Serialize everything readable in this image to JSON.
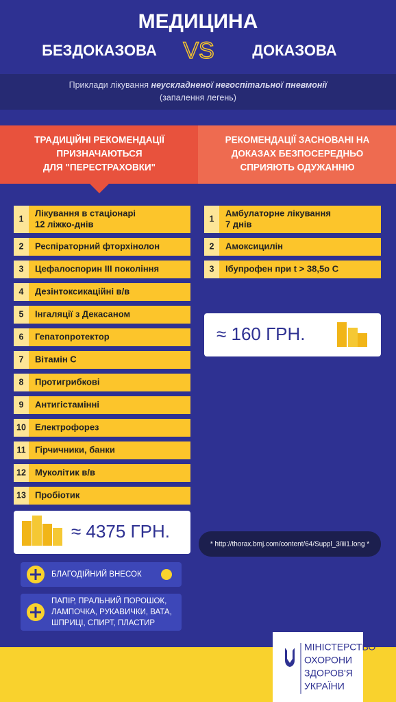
{
  "header": {
    "title": "МЕДИЦИНА",
    "left": "БЕЗДОКАЗОВА",
    "vs": "VS",
    "right": "ДОКАЗОВА"
  },
  "subtitle": {
    "prefix": "Приклади лікування ",
    "emphasis": "неускладненої негоспітальної пневмонії",
    "line2": "(запалення легень)"
  },
  "left": {
    "heading": [
      "ТРАДИЦІЙНІ РЕКОМЕНДАЦІЇ",
      "ПРИЗНАЧАЮТЬСЯ",
      "ДЛЯ \"ПЕРЕСТРАХОВКИ\""
    ],
    "items": [
      {
        "number": "1",
        "lines": [
          "Лікування в стаціонарі",
          "12 ліжко-днів"
        ]
      },
      {
        "number": "2",
        "lines": [
          "Респіраторний фторхінолон"
        ]
      },
      {
        "number": "3",
        "lines": [
          "Цефалоспорин ІІІ покоління"
        ]
      },
      {
        "number": "4",
        "lines": [
          "Дезінтоксикаційні в/в"
        ]
      },
      {
        "number": "5",
        "lines": [
          "Інгаляції з Декасаном"
        ]
      },
      {
        "number": "6",
        "lines": [
          "Гепатопротектор"
        ]
      },
      {
        "number": "7",
        "lines": [
          "Вітамін С"
        ]
      },
      {
        "number": "8",
        "lines": [
          "Протигрибкові"
        ]
      },
      {
        "number": "9",
        "lines": [
          "Антигістамінні"
        ]
      },
      {
        "number": "10",
        "lines": [
          "Електрофорез"
        ]
      },
      {
        "number": "11",
        "lines": [
          "Гірчичники, банки"
        ]
      },
      {
        "number": "12",
        "lines": [
          "Муколітик в/в"
        ]
      },
      {
        "number": "13",
        "lines": [
          "Пробіотик"
        ]
      }
    ],
    "price": "≈ 4375 ГРН.",
    "extras": [
      {
        "lines": [
          "БЛАГОДІЙНИЙ ВНЕСОК"
        ]
      },
      {
        "lines": [
          "ПАПІР, ПРАЛЬНИЙ ПОРОШОК,",
          "ЛАМПОЧКА, РУКАВИЧКИ, ВАТА,",
          "ШПРИЦІ, СПИРТ, ПЛАСТИР"
        ]
      }
    ]
  },
  "right": {
    "heading": [
      "РЕКОМЕНДАЦІЇ ЗАСНОВАНІ НА",
      "ДОКАЗАХ БЕЗПОСЕРЕДНЬО",
      "СПРИЯЮТЬ ОДУЖАННЮ"
    ],
    "items": [
      {
        "number": "1",
        "lines": [
          "Амбулаторне лікування",
          "7 днів"
        ]
      },
      {
        "number": "2",
        "lines": [
          "Амоксицилін"
        ]
      },
      {
        "number": "3",
        "lines": [
          "Ібупрофен при t > 38,5o C"
        ]
      }
    ],
    "price": "≈ 160 ГРН.",
    "footnote": "* http://thorax.bmj.com/content/64/Suppl_3/iii1.long *"
  },
  "footer": {
    "ministry": [
      "МІНІСТЕРСТВО",
      "ОХОРОНИ",
      "ЗДОРОВ'Я",
      "УКРАЇНИ"
    ]
  }
}
